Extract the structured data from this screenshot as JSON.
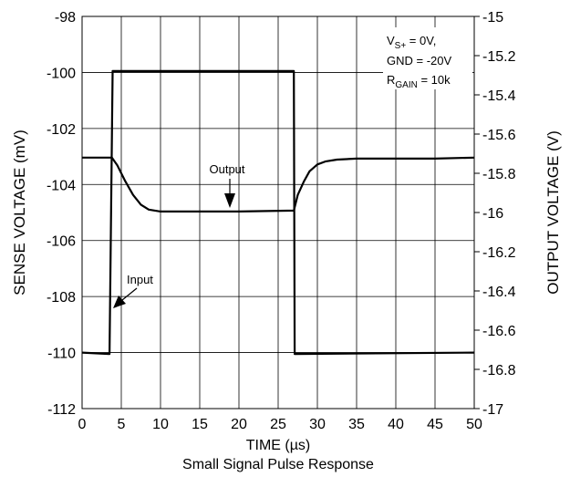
{
  "chart_data": {
    "type": "line",
    "caption": "Small Signal Pulse Response",
    "xlabel": "TIME (µs)",
    "ylabel_left": "SENSE VOLTAGE (mV)",
    "ylabel_right": "OUTPUT VOLTAGE (V)",
    "xlim": [
      0,
      50
    ],
    "ylim_left": [
      -112,
      -98
    ],
    "ylim_right": [
      -17,
      -15
    ],
    "grid": true,
    "x_ticks": [
      0,
      5,
      10,
      15,
      20,
      25,
      30,
      35,
      40,
      45,
      50
    ],
    "y_left_ticks": [
      -98,
      -100,
      -102,
      -104,
      -106,
      -108,
      -110,
      -112
    ],
    "y_right_ticks": [
      -15,
      -15.2,
      -15.4,
      -15.6,
      -15.8,
      -16,
      -16.2,
      -16.4,
      -16.6,
      -16.8,
      -17
    ],
    "conditions": {
      "line1_main": "V",
      "line1_sub": "S+",
      "line1_rest": " = 0V,",
      "line2": "GND = -20V",
      "line3_main": "R",
      "line3_sub": "GAIN",
      "line3_rest": " = 10k"
    },
    "annotations": {
      "output": "Output",
      "input": "Input"
    },
    "series": [
      {
        "name": "Input",
        "axis": "left",
        "x": [
          0,
          3.5,
          3.9,
          27,
          27.1,
          50
        ],
        "y": [
          -110.0,
          -110.05,
          -99.95,
          -99.95,
          -110.05,
          -110.0
        ]
      },
      {
        "name": "Output",
        "axis": "right",
        "x": [
          0,
          3.8,
          4.5,
          5.5,
          6.5,
          7.5,
          8.5,
          10,
          15,
          20,
          27,
          27.5,
          28.3,
          29,
          30,
          31,
          32.5,
          35,
          40,
          45,
          50
        ],
        "y": [
          -15.72,
          -15.72,
          -15.76,
          -15.84,
          -15.91,
          -15.96,
          -15.985,
          -15.995,
          -15.995,
          -15.995,
          -15.99,
          -15.91,
          -15.84,
          -15.79,
          -15.755,
          -15.74,
          -15.73,
          -15.725,
          -15.725,
          -15.725,
          -15.72
        ]
      }
    ]
  }
}
